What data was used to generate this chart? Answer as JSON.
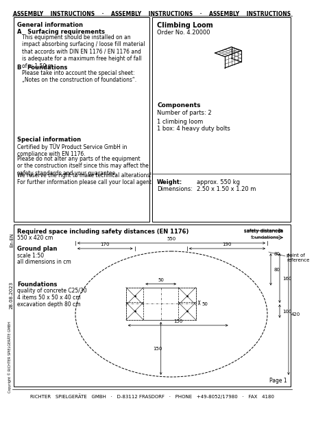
{
  "title_header": "ASSEMBLY    INSTRUCTIONS    ·    ASSEMBLY    INSTRUCTIONS    ·    ASSEMBLY    INSTRUCTIONS",
  "footer": "RICHTER   SPIELGERÄTE   GMBH   ·   D-83112 FRASDORF   ·   PHONE   +49-8052/17980   ·   FAX   4180",
  "left_box_title": "General information",
  "section_a_title": "A   Surfacing requirements",
  "section_a_text": "This equipment should be installed on an\nimpact absorbing surfacing / loose fill material\nthat accords with DIN EN 1176 / EN 1176 and\nis adequate for a maximum free height of fall\nof ≤ 1.50 m.",
  "section_b_title": "B   Foundations",
  "section_b_text": "Please take into account the special sheet:\n„Notes on the construction of foundations“.",
  "special_info_title": "Special information",
  "special_info_text1": "Certified by TÜV Product Service GmbH in\ncompliance with EN 1176.",
  "special_info_text2": "Please do not alter any parts of the equipment\nor the construction itself since this may affect the\nsafety standards and your guarantee.",
  "special_info_text3": "We reserve the right to make technical alterations!\nFor further information please call your local agent.",
  "right_box_title": "Climbing Loom",
  "order_no": "Order No. 4.20000",
  "components_title": "Components",
  "num_parts": "Number of parts: 2",
  "parts_list": "1 climbing loom\n1 box: 4 heavy duty bolts",
  "weight_label": "Weight:",
  "weight_value": "approx. 550 kg",
  "dimensions_label": "Dimensions:",
  "dimensions_value": "2.50 x 1.50 x 1.20 m",
  "bottom_box_title": "Required space including safety distances (EN 1176)",
  "bottom_box_subtitle": "550 x 420 cm",
  "ground_plan_label": "Ground plan",
  "ground_plan_scale": "scale 1:50",
  "ground_plan_dims": "all dimensions in cm",
  "foundations_label": "Foundations",
  "foundations_quality": "quality of concrete C25/30",
  "foundations_items": "4 items 50 x 50 x 40 cm\nexcavation depth 80 cm",
  "dim_550": "550",
  "dim_170": "170",
  "dim_190": "190",
  "dim_150_h": "150",
  "dim_150_v": "150",
  "dim_80": "80",
  "dim_50_h": "50",
  "dim_50_v": "50",
  "dim_160": "160",
  "dim_100": "100",
  "dim_420": "420",
  "safety_distances": "safety distances",
  "foundations_ann": "foundations",
  "point_of_ref": "point of\nreference",
  "date_text": "28.08.2023",
  "lang_text": "En-EN",
  "copyright_text": "Copyright © RICHTER SPIELGERÄTE GMBH",
  "page_text": "Page 1",
  "bg_color": "#ffffff"
}
